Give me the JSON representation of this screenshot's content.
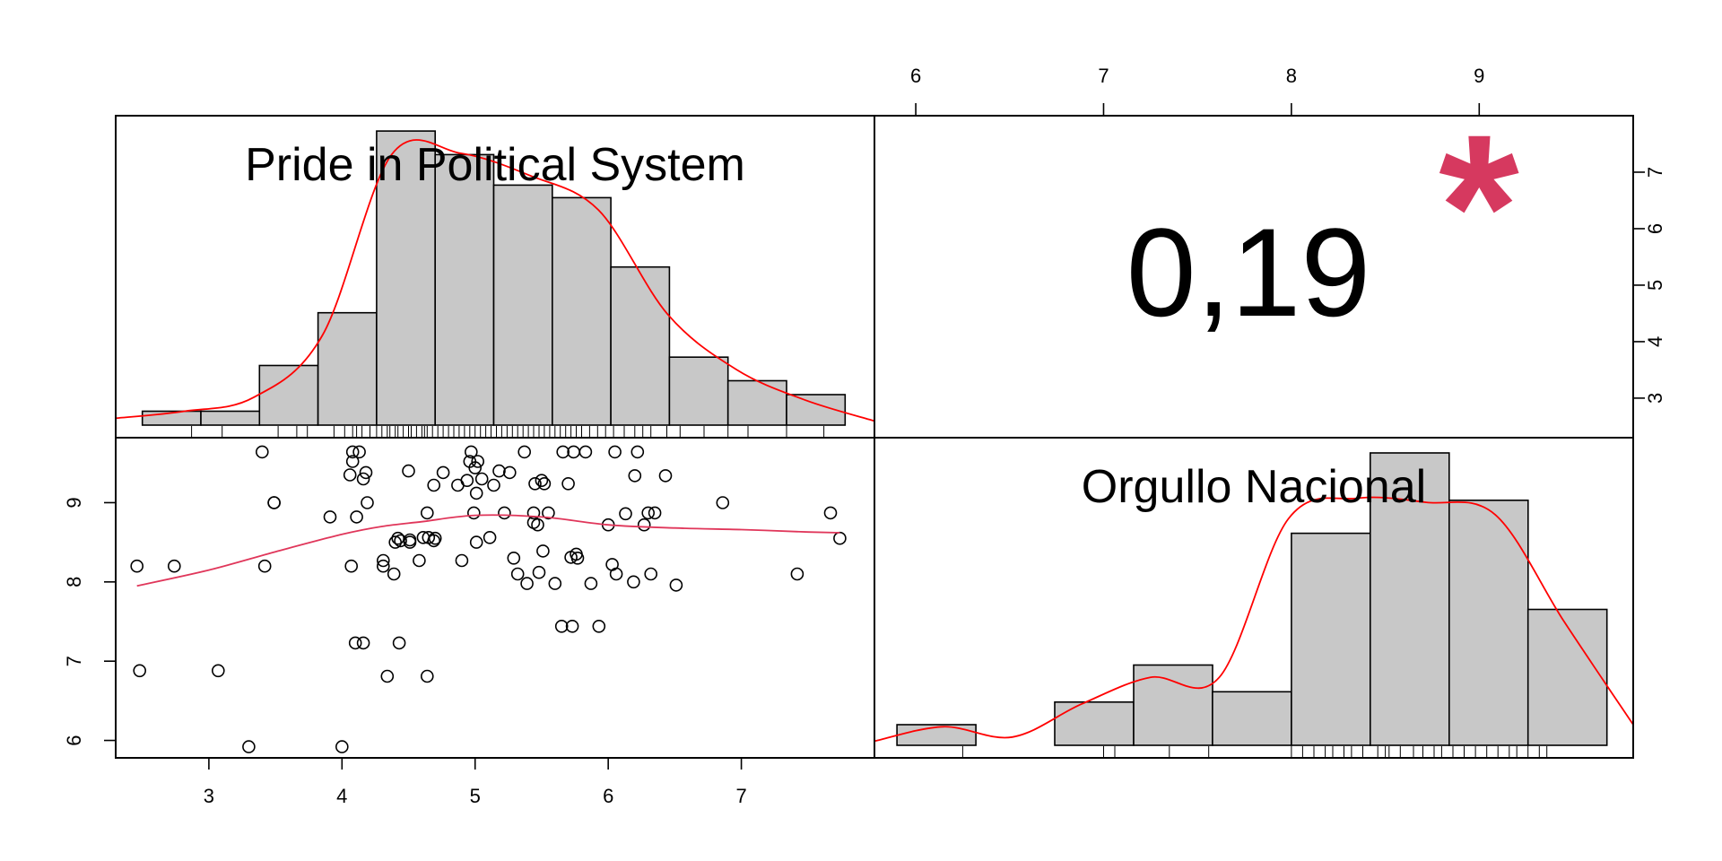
{
  "colors": {
    "bar_fill": "#c8c8c8",
    "density_line": "#ff0000",
    "smooth_line": "#e0365a",
    "star": "#d6395f",
    "frame": "#000000"
  },
  "chart_data": {
    "type": "scatter",
    "layout": "2x2 correlation matrix (histogram + density on diagonal, scatter with smooth lower-left, correlation upper-right)",
    "variables": [
      "Pride in Political System",
      "Orgullo Nacional"
    ],
    "correlation": {
      "text": "0,19",
      "value": 0.19,
      "significance": "*"
    },
    "axes": {
      "var1_ticks": [
        "3",
        "4",
        "5",
        "6",
        "7"
      ],
      "var1_range": [
        2.3,
        8.0
      ],
      "var2_ticks": [
        "6",
        "7",
        "8",
        "9"
      ],
      "var2_range": [
        5.78,
        9.82
      ],
      "right_axis_ticks": [
        "3",
        "4",
        "5",
        "6",
        "7"
      ],
      "right_axis_range": [
        2.3,
        8.0
      ]
    },
    "histograms": [
      {
        "variable": "Pride in Political System",
        "bin_edges": [
          2.5,
          2.94,
          3.38,
          3.82,
          4.26,
          4.7,
          5.14,
          5.58,
          6.02,
          6.46,
          6.9,
          7.34,
          7.78
        ],
        "heights": [
          1,
          1,
          4.3,
          8.1,
          21.2,
          19.5,
          17.3,
          16.4,
          11.4,
          4.9,
          3.2,
          2.2
        ],
        "density_y": [
          0.5,
          1.0,
          2.0,
          6.5,
          19.5,
          19.6,
          18.0,
          15.5,
          8.0,
          4.0,
          1.8,
          0.3
        ],
        "rug": [
          2.87,
          3.1,
          3.52,
          3.66,
          3.74,
          3.94,
          4.02,
          4.08,
          4.11,
          4.15,
          4.21,
          4.26,
          4.3,
          4.34,
          4.36,
          4.4,
          4.42,
          4.46,
          4.5,
          4.52,
          4.56,
          4.6,
          4.62,
          4.64,
          4.68,
          4.72,
          4.76,
          4.8,
          4.84,
          4.88,
          4.92,
          4.96,
          5.0,
          5.04,
          5.08,
          5.12,
          5.16,
          5.2,
          5.24,
          5.28,
          5.32,
          5.36,
          5.4,
          5.44,
          5.48,
          5.52,
          5.56,
          5.6,
          5.64,
          5.68,
          5.72,
          5.76,
          5.8,
          5.86,
          5.92,
          5.98,
          6.04,
          6.12,
          6.2,
          6.26,
          6.32,
          6.44,
          6.54,
          6.72,
          6.9,
          7.05,
          7.34,
          7.62
        ]
      },
      {
        "variable": "Orgullo Nacional",
        "bin_edges": [
          5.9,
          6.32,
          6.74,
          7.16,
          7.58,
          8.0,
          8.42,
          8.84,
          9.26,
          9.68
        ],
        "heights": [
          1,
          0,
          2.1,
          3.9,
          2.6,
          10.3,
          14.2,
          11.9,
          6.6
        ],
        "density_y": [
          0.2,
          0.9,
          0.4,
          2.0,
          3.3,
          3.3,
          11.0,
          12.0,
          11.8,
          11.2,
          6.0,
          1.0
        ],
        "rug": [
          6.25,
          7.0,
          7.06,
          7.35,
          7.56,
          8.0,
          8.06,
          8.12,
          8.18,
          8.22,
          8.28,
          8.32,
          8.38,
          8.46,
          8.5,
          8.52,
          8.58,
          8.65,
          8.7,
          8.76,
          8.8,
          8.86,
          8.92,
          8.98,
          9.04,
          9.1,
          9.16,
          9.2,
          9.26,
          9.32,
          9.36
        ]
      }
    ],
    "scatter": {
      "x_variable": "Pride in Political System",
      "y_variable": "Orgullo Nacional",
      "x": [
        2.46,
        2.48,
        2.74,
        3.07,
        3.3,
        3.4,
        3.42,
        3.49,
        3.49,
        3.91,
        4.0,
        4.06,
        4.07,
        4.08,
        4.08,
        4.1,
        4.11,
        4.13,
        4.16,
        4.16,
        4.18,
        4.19,
        4.31,
        4.31,
        4.34,
        4.39,
        4.4,
        4.42,
        4.43,
        4.44,
        4.5,
        4.51,
        4.51,
        4.58,
        4.61,
        4.64,
        4.64,
        4.65,
        4.69,
        4.69,
        4.7,
        4.76,
        4.87,
        4.9,
        4.94,
        4.96,
        4.97,
        4.99,
        5.0,
        5.01,
        5.01,
        5.02,
        5.05,
        5.11,
        5.14,
        5.18,
        5.22,
        5.26,
        5.29,
        5.32,
        5.37,
        5.39,
        5.44,
        5.44,
        5.45,
        5.47,
        5.48,
        5.5,
        5.51,
        5.52,
        5.55,
        5.6,
        5.65,
        5.66,
        5.7,
        5.72,
        5.73,
        5.74,
        5.76,
        5.77,
        5.83,
        5.87,
        5.93,
        6.0,
        6.03,
        6.05,
        6.06,
        6.13,
        6.19,
        6.2,
        6.22,
        6.27,
        6.3,
        6.32,
        6.35,
        6.43,
        6.51,
        6.86,
        7.42,
        7.67,
        7.74
      ],
      "y": [
        8.2,
        6.88,
        8.2,
        6.88,
        5.92,
        9.64,
        8.2,
        9.0,
        9.0,
        8.82,
        5.92,
        9.35,
        8.2,
        9.52,
        9.64,
        7.23,
        8.82,
        9.64,
        7.23,
        9.3,
        9.38,
        9.0,
        8.27,
        8.2,
        6.81,
        8.1,
        8.5,
        8.55,
        7.23,
        8.52,
        9.4,
        8.53,
        8.5,
        8.27,
        8.56,
        8.87,
        6.81,
        8.56,
        9.22,
        8.52,
        8.55,
        9.38,
        9.22,
        8.27,
        9.28,
        9.52,
        9.64,
        8.87,
        9.44,
        9.12,
        8.5,
        9.52,
        9.3,
        8.56,
        9.22,
        9.4,
        8.87,
        9.38,
        8.3,
        8.1,
        9.64,
        7.98,
        8.87,
        8.75,
        9.24,
        8.72,
        8.12,
        9.28,
        8.39,
        9.24,
        8.87,
        7.98,
        7.44,
        9.64,
        9.24,
        8.31,
        7.44,
        9.64,
        8.35,
        8.3,
        9.64,
        7.98,
        7.44,
        8.72,
        8.22,
        9.64,
        8.1,
        8.86,
        8.0,
        9.34,
        9.64,
        8.72,
        8.87,
        8.1,
        8.87,
        9.34,
        7.96,
        9.0,
        8.1,
        8.87,
        8.55
      ],
      "smooth": {
        "x": [
          2.46,
          3.0,
          3.5,
          4.0,
          4.3,
          4.6,
          5.0,
          5.5,
          6.0,
          6.5,
          7.0,
          7.5,
          7.74
        ],
        "y": [
          7.95,
          8.15,
          8.38,
          8.6,
          8.7,
          8.76,
          8.84,
          8.82,
          8.72,
          8.68,
          8.66,
          8.63,
          8.62
        ]
      }
    },
    "grid": false,
    "legend": "none"
  }
}
